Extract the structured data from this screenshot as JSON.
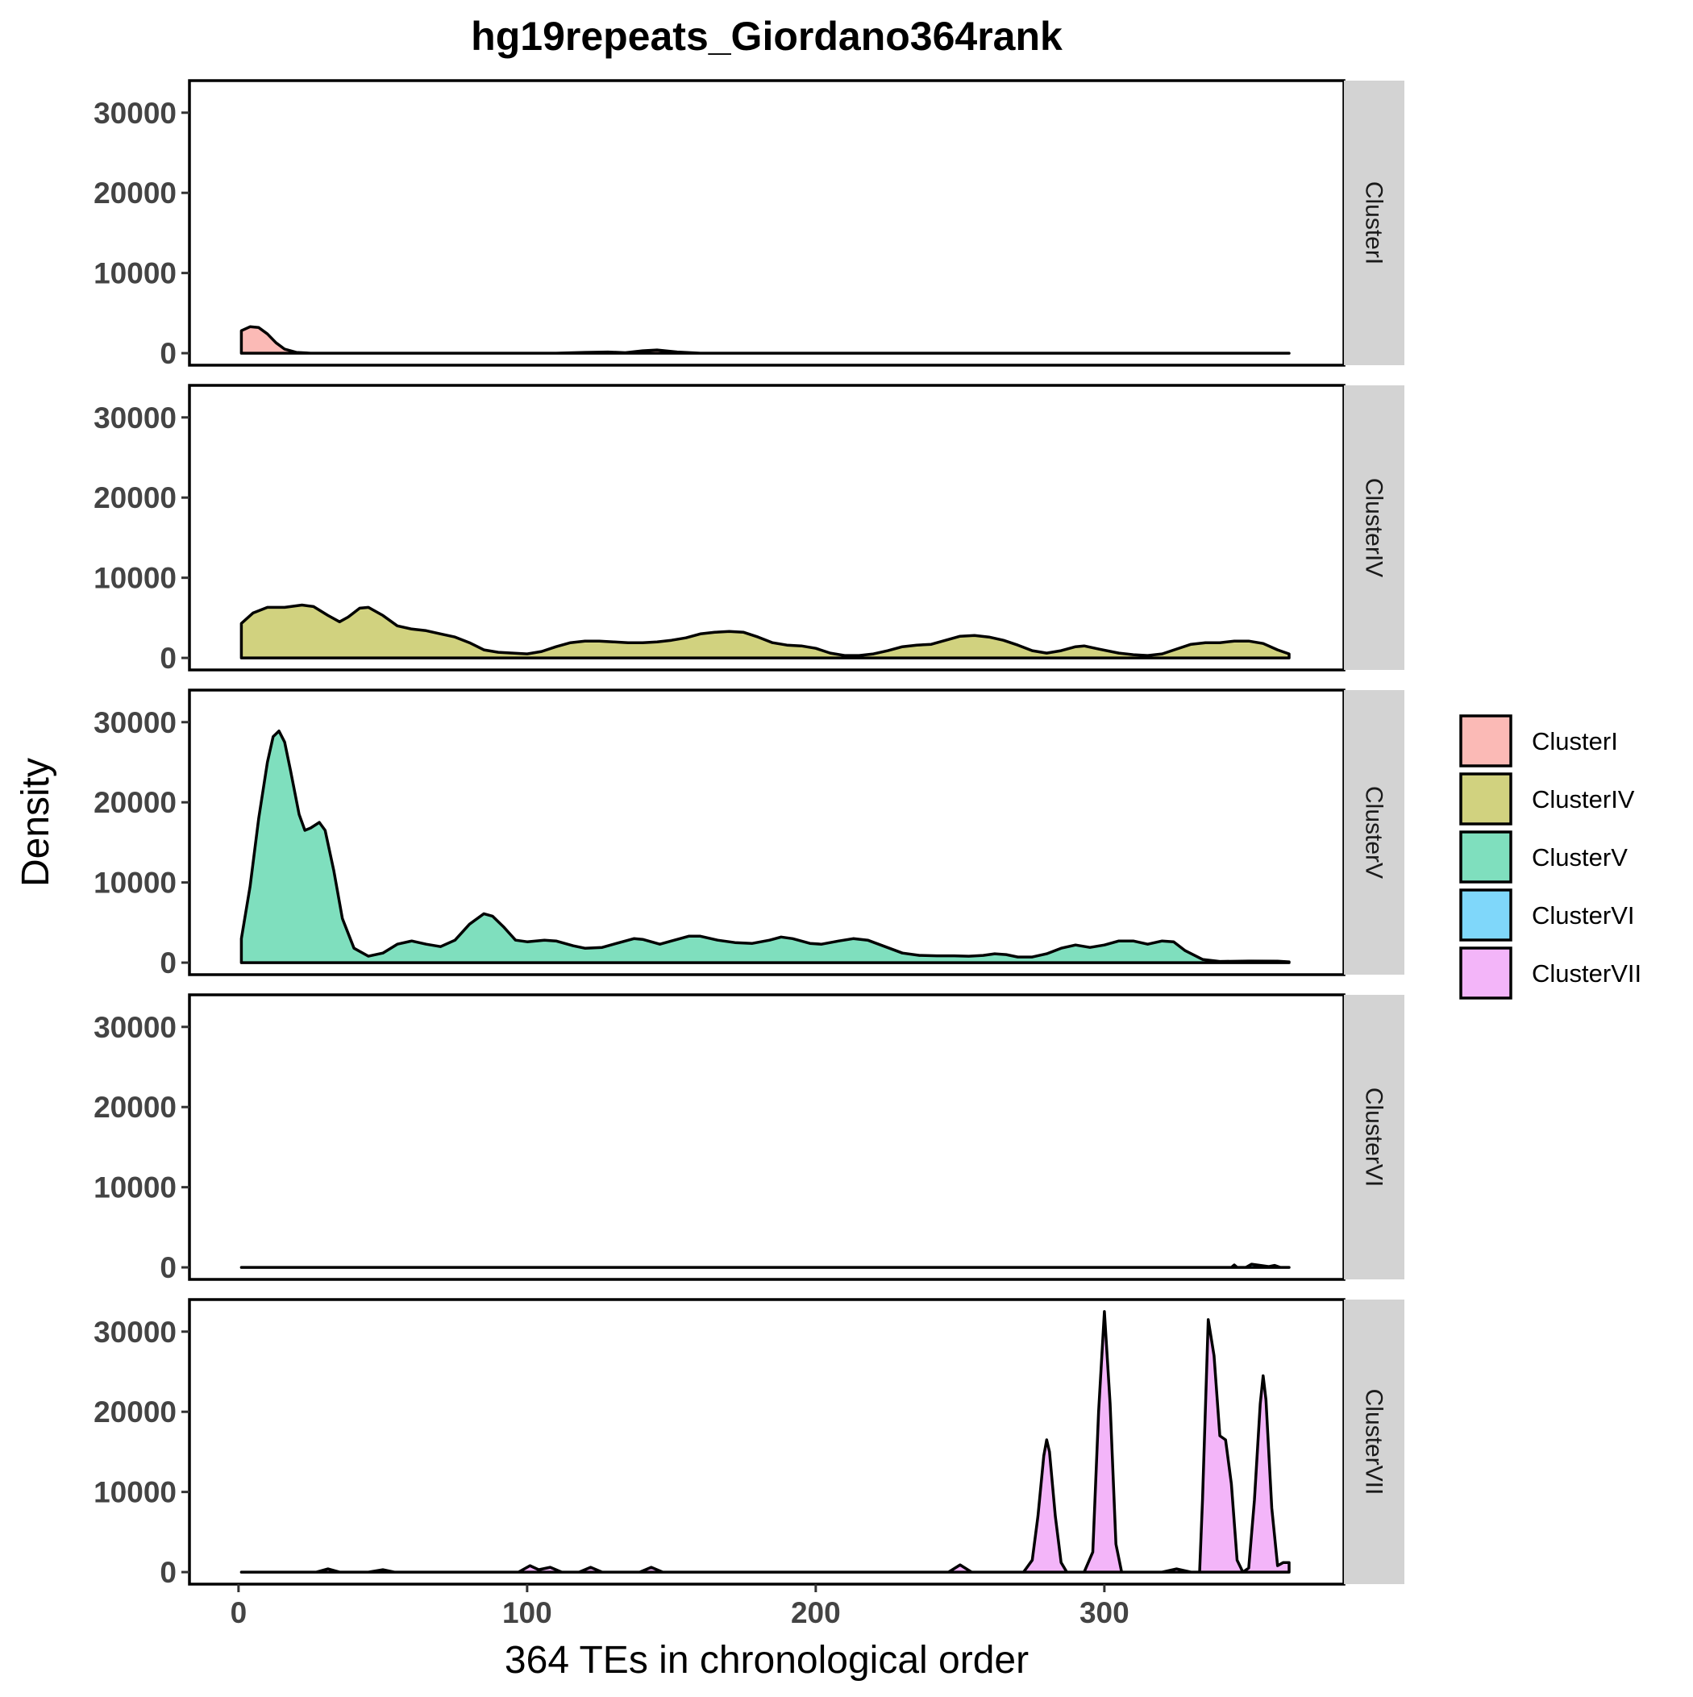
{
  "chart_data": {
    "type": "area",
    "title": "hg19repeats_Giordano364rank",
    "xlabel": "364 TEs in chronological order",
    "ylabel": "Density",
    "xlim": [
      -17,
      383
    ],
    "ylim": [
      -1500,
      34000
    ],
    "x_ticks": [
      0,
      100,
      200,
      300
    ],
    "y_ticks": [
      0,
      10000,
      20000,
      30000
    ],
    "x_tick_labels": [
      "0",
      "100",
      "200",
      "300"
    ],
    "y_tick_labels": [
      "0",
      "10000",
      "20000",
      "30000"
    ],
    "facet": "rows",
    "legend_position": "right",
    "grid": false,
    "series": [
      {
        "name": "ClusterI",
        "color": "#F8766D",
        "points": [
          [
            1,
            0
          ],
          [
            1,
            2800
          ],
          [
            4,
            3300
          ],
          [
            7,
            3200
          ],
          [
            10,
            2400
          ],
          [
            13,
            1300
          ],
          [
            16,
            500
          ],
          [
            20,
            100
          ],
          [
            25,
            0
          ],
          [
            110,
            0
          ],
          [
            120,
            100
          ],
          [
            128,
            150
          ],
          [
            134,
            60
          ],
          [
            140,
            300
          ],
          [
            145,
            400
          ],
          [
            152,
            150
          ],
          [
            160,
            0
          ],
          [
            364,
            0
          ]
        ]
      },
      {
        "name": "ClusterIV",
        "color": "#A3A500",
        "points": [
          [
            1,
            0
          ],
          [
            1,
            4300
          ],
          [
            5,
            5600
          ],
          [
            10,
            6300
          ],
          [
            16,
            6300
          ],
          [
            22,
            6600
          ],
          [
            26,
            6400
          ],
          [
            31,
            5300
          ],
          [
            35,
            4500
          ],
          [
            38,
            5100
          ],
          [
            42,
            6200
          ],
          [
            45,
            6300
          ],
          [
            50,
            5300
          ],
          [
            55,
            4000
          ],
          [
            60,
            3600
          ],
          [
            65,
            3400
          ],
          [
            70,
            3000
          ],
          [
            75,
            2600
          ],
          [
            80,
            1900
          ],
          [
            85,
            1000
          ],
          [
            90,
            700
          ],
          [
            95,
            600
          ],
          [
            100,
            500
          ],
          [
            105,
            800
          ],
          [
            110,
            1400
          ],
          [
            115,
            1900
          ],
          [
            120,
            2100
          ],
          [
            125,
            2100
          ],
          [
            130,
            2000
          ],
          [
            135,
            1900
          ],
          [
            140,
            1900
          ],
          [
            145,
            2000
          ],
          [
            150,
            2200
          ],
          [
            155,
            2500
          ],
          [
            160,
            3000
          ],
          [
            165,
            3200
          ],
          [
            170,
            3300
          ],
          [
            175,
            3200
          ],
          [
            180,
            2600
          ],
          [
            185,
            1900
          ],
          [
            190,
            1600
          ],
          [
            195,
            1500
          ],
          [
            200,
            1200
          ],
          [
            205,
            600
          ],
          [
            210,
            300
          ],
          [
            215,
            300
          ],
          [
            220,
            500
          ],
          [
            225,
            900
          ],
          [
            230,
            1400
          ],
          [
            235,
            1600
          ],
          [
            240,
            1700
          ],
          [
            245,
            2200
          ],
          [
            250,
            2700
          ],
          [
            255,
            2800
          ],
          [
            260,
            2600
          ],
          [
            265,
            2200
          ],
          [
            270,
            1600
          ],
          [
            275,
            900
          ],
          [
            280,
            600
          ],
          [
            285,
            900
          ],
          [
            290,
            1400
          ],
          [
            293,
            1500
          ],
          [
            298,
            1100
          ],
          [
            305,
            600
          ],
          [
            310,
            400
          ],
          [
            315,
            300
          ],
          [
            320,
            500
          ],
          [
            325,
            1100
          ],
          [
            330,
            1700
          ],
          [
            335,
            1900
          ],
          [
            340,
            1900
          ],
          [
            345,
            2100
          ],
          [
            350,
            2100
          ],
          [
            355,
            1800
          ],
          [
            360,
            1000
          ],
          [
            364,
            500
          ],
          [
            364,
            0
          ]
        ]
      },
      {
        "name": "ClusterV",
        "color": "#00BF7D",
        "points": [
          [
            1,
            0
          ],
          [
            1,
            3000
          ],
          [
            4,
            9500
          ],
          [
            7,
            18000
          ],
          [
            10,
            25000
          ],
          [
            12,
            28200
          ],
          [
            14,
            28900
          ],
          [
            16,
            27500
          ],
          [
            18,
            24000
          ],
          [
            21,
            18500
          ],
          [
            23,
            16500
          ],
          [
            25,
            16800
          ],
          [
            28,
            17500
          ],
          [
            30,
            16500
          ],
          [
            33,
            11500
          ],
          [
            36,
            5500
          ],
          [
            40,
            1800
          ],
          [
            45,
            800
          ],
          [
            50,
            1200
          ],
          [
            55,
            2300
          ],
          [
            60,
            2700
          ],
          [
            65,
            2300
          ],
          [
            70,
            2000
          ],
          [
            75,
            2800
          ],
          [
            80,
            4800
          ],
          [
            85,
            6100
          ],
          [
            88,
            5800
          ],
          [
            92,
            4400
          ],
          [
            96,
            2800
          ],
          [
            100,
            2600
          ],
          [
            106,
            2800
          ],
          [
            110,
            2700
          ],
          [
            116,
            2100
          ],
          [
            120,
            1800
          ],
          [
            126,
            1900
          ],
          [
            132,
            2500
          ],
          [
            137,
            3000
          ],
          [
            140,
            2900
          ],
          [
            146,
            2300
          ],
          [
            150,
            2700
          ],
          [
            156,
            3300
          ],
          [
            160,
            3300
          ],
          [
            166,
            2800
          ],
          [
            172,
            2500
          ],
          [
            178,
            2400
          ],
          [
            184,
            2800
          ],
          [
            188,
            3200
          ],
          [
            192,
            3000
          ],
          [
            198,
            2400
          ],
          [
            202,
            2300
          ],
          [
            208,
            2700
          ],
          [
            213,
            3000
          ],
          [
            218,
            2800
          ],
          [
            224,
            2000
          ],
          [
            230,
            1200
          ],
          [
            236,
            900
          ],
          [
            242,
            850
          ],
          [
            248,
            850
          ],
          [
            253,
            800
          ],
          [
            258,
            900
          ],
          [
            262,
            1100
          ],
          [
            266,
            1000
          ],
          [
            270,
            700
          ],
          [
            275,
            700
          ],
          [
            280,
            1100
          ],
          [
            285,
            1800
          ],
          [
            290,
            2200
          ],
          [
            295,
            1900
          ],
          [
            300,
            2200
          ],
          [
            305,
            2700
          ],
          [
            310,
            2700
          ],
          [
            315,
            2300
          ],
          [
            320,
            2700
          ],
          [
            324,
            2600
          ],
          [
            328,
            1500
          ],
          [
            334,
            400
          ],
          [
            340,
            150
          ],
          [
            350,
            200
          ],
          [
            360,
            180
          ],
          [
            364,
            100
          ],
          [
            364,
            0
          ]
        ]
      },
      {
        "name": "ClusterVI",
        "color": "#00B0F6",
        "points": [
          [
            1,
            0
          ],
          [
            344,
            0
          ],
          [
            345,
            300
          ],
          [
            346,
            0
          ],
          [
            349,
            0
          ],
          [
            351,
            400
          ],
          [
            353,
            300
          ],
          [
            355,
            200
          ],
          [
            357,
            100
          ],
          [
            359,
            250
          ],
          [
            361,
            0
          ],
          [
            364,
            0
          ]
        ]
      },
      {
        "name": "ClusterVII",
        "color": "#E76BF3",
        "points": [
          [
            1,
            0
          ],
          [
            27,
            0
          ],
          [
            31,
            400
          ],
          [
            35,
            0
          ],
          [
            45,
            0
          ],
          [
            50,
            300
          ],
          [
            54,
            0
          ],
          [
            97,
            0
          ],
          [
            101,
            800
          ],
          [
            104,
            300
          ],
          [
            108,
            600
          ],
          [
            112,
            0
          ],
          [
            118,
            0
          ],
          [
            122,
            600
          ],
          [
            126,
            0
          ],
          [
            139,
            0
          ],
          [
            143,
            600
          ],
          [
            147,
            0
          ],
          [
            246,
            0
          ],
          [
            250,
            900
          ],
          [
            254,
            0
          ],
          [
            272,
            0
          ],
          [
            275,
            1500
          ],
          [
            277,
            7000
          ],
          [
            279,
            14500
          ],
          [
            280,
            16500
          ],
          [
            281,
            15000
          ],
          [
            283,
            7000
          ],
          [
            285,
            1200
          ],
          [
            287,
            0
          ],
          [
            293,
            0
          ],
          [
            296,
            2500
          ],
          [
            298,
            20000
          ],
          [
            300,
            32500
          ],
          [
            302,
            21000
          ],
          [
            304,
            3500
          ],
          [
            306,
            0
          ],
          [
            320,
            0
          ],
          [
            325,
            400
          ],
          [
            330,
            0
          ],
          [
            333,
            0
          ],
          [
            334,
            9000
          ],
          [
            336,
            31500
          ],
          [
            338,
            27000
          ],
          [
            340,
            17000
          ],
          [
            342,
            16500
          ],
          [
            344,
            11000
          ],
          [
            346,
            1500
          ],
          [
            348,
            0
          ],
          [
            350,
            500
          ],
          [
            352,
            9000
          ],
          [
            354,
            21000
          ],
          [
            355,
            24500
          ],
          [
            356,
            21500
          ],
          [
            358,
            8000
          ],
          [
            360,
            800
          ],
          [
            362,
            1200
          ],
          [
            364,
            1200
          ],
          [
            364,
            0
          ]
        ]
      }
    ]
  }
}
